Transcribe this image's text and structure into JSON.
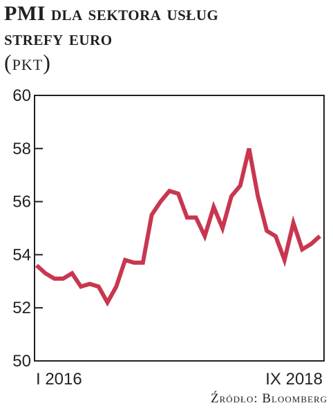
{
  "title_line1": "PMI dla sektora usług",
  "title_line2": "strefy euro",
  "subtitle": "(pkt)",
  "source": "Źródło: Bloomberg",
  "line_color": "#c8374f",
  "chart_data": {
    "type": "line",
    "x_labels": [
      "I 2016",
      "IX 2018"
    ],
    "ylim": [
      50,
      60
    ],
    "yticks": [
      50,
      52,
      54,
      56,
      58,
      60
    ],
    "grid": false,
    "series": [
      {
        "values": [
          53.6,
          53.3,
          53.1,
          53.1,
          53.3,
          52.8,
          52.9,
          52.8,
          52.2,
          52.8,
          53.8,
          53.7,
          53.7,
          55.5,
          56.0,
          56.4,
          56.3,
          55.4,
          55.4,
          54.7,
          55.8,
          55.0,
          56.2,
          56.6,
          58.0,
          56.2,
          54.9,
          54.7,
          53.8,
          55.2,
          54.2,
          54.4,
          54.7
        ]
      }
    ]
  }
}
